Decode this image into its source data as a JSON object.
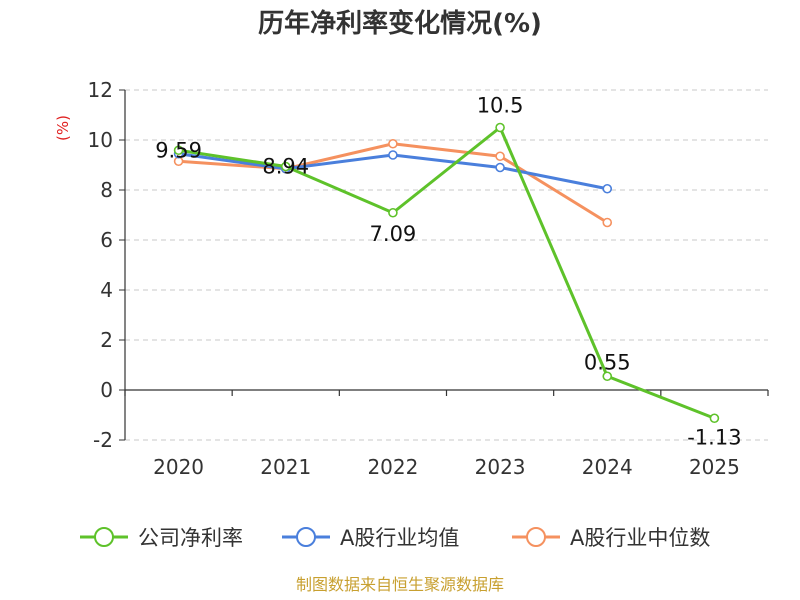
{
  "chart_data": {
    "type": "line",
    "title": "历年净利率变化情况(%)",
    "ylabel": "(%)",
    "xlabel": "",
    "categories": [
      "2020",
      "2021",
      "2022",
      "2023",
      "2024",
      "2025"
    ],
    "ylim": [
      -2,
      12
    ],
    "yticks": [
      "-2",
      "0",
      "2",
      "4",
      "6",
      "8",
      "10",
      "12"
    ],
    "grid": true,
    "legend_position": "bottom",
    "series": [
      {
        "name": "公司净利率",
        "color": "#5ec22a",
        "values": [
          9.59,
          8.94,
          7.09,
          10.5,
          0.55,
          -1.13
        ],
        "labels": [
          "9.59",
          "8.94",
          "7.09",
          "10.5",
          "0.55",
          "-1.13"
        ]
      },
      {
        "name": "A股行业均值",
        "color": "#4a7fdc",
        "values": [
          9.45,
          8.85,
          9.4,
          8.9,
          8.05,
          null
        ]
      },
      {
        "name": "A股行业中位数",
        "color": "#f5915f",
        "values": [
          9.15,
          8.85,
          9.85,
          9.35,
          6.7,
          null
        ]
      }
    ]
  },
  "source": "制图数据来自恒生聚源数据库"
}
